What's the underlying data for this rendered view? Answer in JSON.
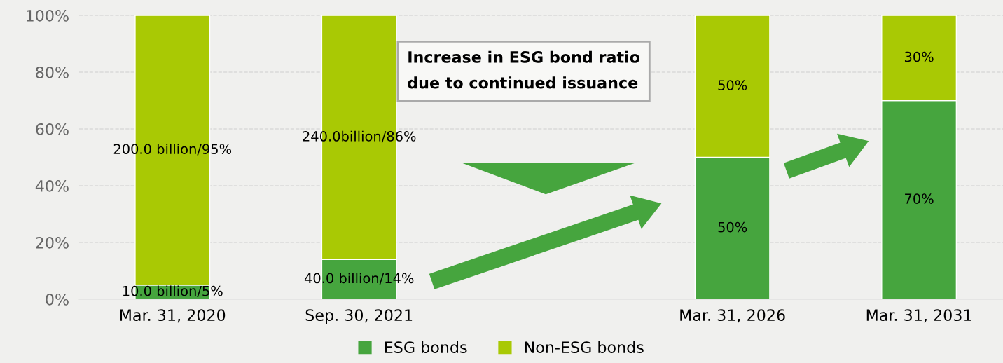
{
  "chart_data": {
    "type": "bar",
    "stacked": true,
    "categories": [
      "Mar. 31, 2020",
      "Sep. 30, 2021",
      null,
      "Mar. 31, 2026",
      "Mar. 31, 2031"
    ],
    "series": [
      {
        "name": "ESG bonds",
        "color": "#46a53e",
        "values": [
          5,
          14,
          null,
          50,
          70
        ],
        "value_labels": [
          "10.0 billion/5%",
          "40.0 billion/14%",
          null,
          "50%",
          "70%"
        ]
      },
      {
        "name": "Non-ESG bonds",
        "color": "#a9c904",
        "values": [
          95,
          86,
          null,
          50,
          30
        ],
        "value_labels": [
          "200.0 billion/95%",
          "240.0billion/86%",
          null,
          "50%",
          "30%"
        ]
      }
    ],
    "ylim": [
      0,
      100
    ],
    "yticks": [
      {
        "value": 0,
        "label": "0%"
      },
      {
        "value": 20,
        "label": "20%"
      },
      {
        "value": 40,
        "label": "40%"
      },
      {
        "value": 60,
        "label": "60%"
      },
      {
        "value": 80,
        "label": "80%"
      },
      {
        "value": 100,
        "label": "100%"
      }
    ],
    "grid": "y",
    "legend": "bottom",
    "annotations": [
      "Increase in ESG bond ratio\ndue to continued issuance"
    ]
  }
}
